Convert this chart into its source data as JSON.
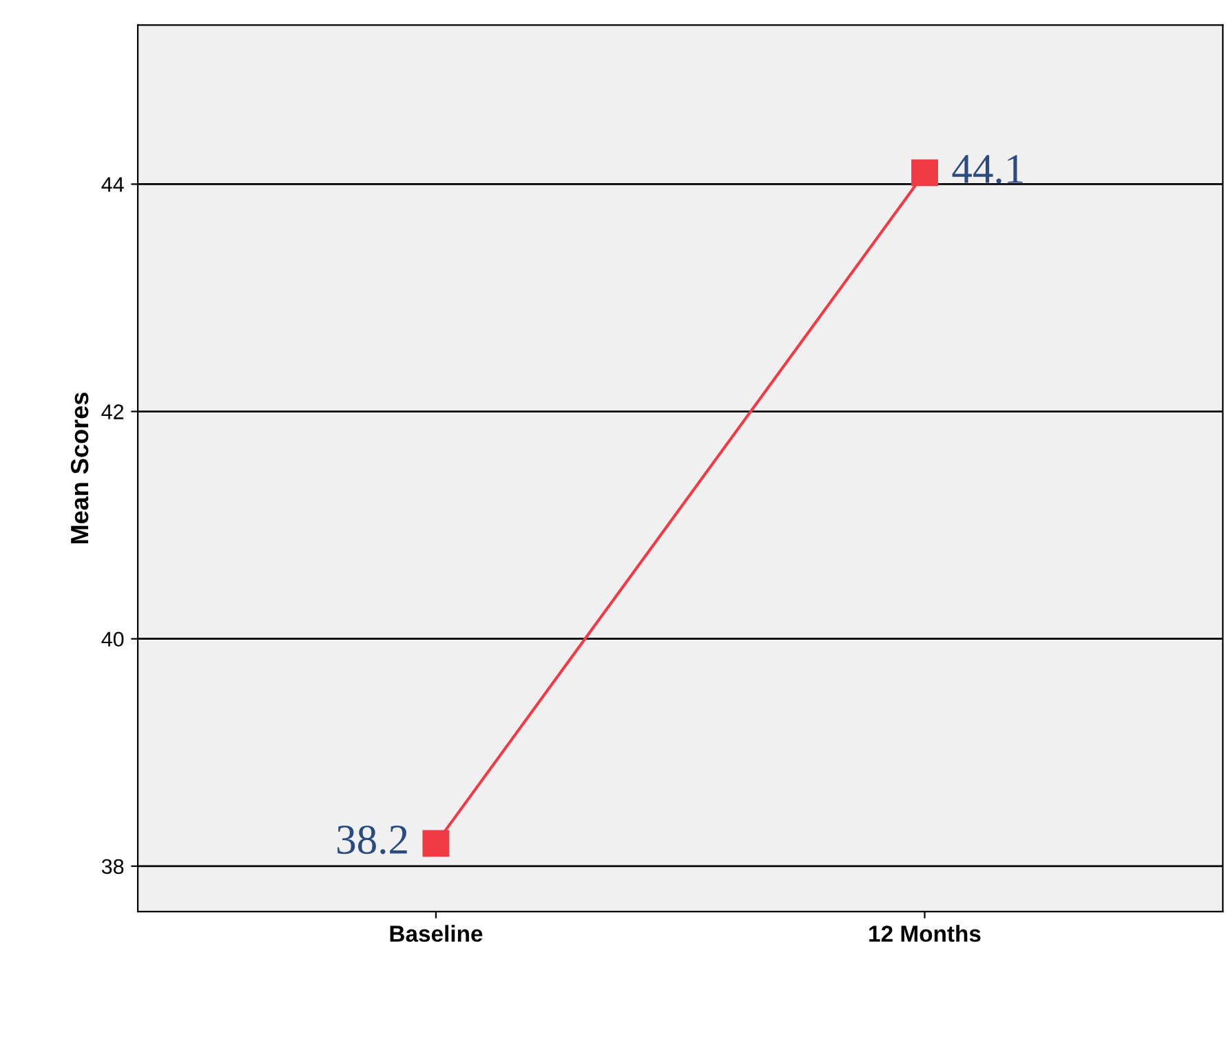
{
  "chart_data": {
    "type": "line",
    "ylabel": "Mean Scores",
    "categories": [
      "Baseline",
      "12 Months"
    ],
    "series": [
      {
        "color": "#f03a44",
        "values": [
          38.2,
          44.1
        ]
      }
    ],
    "ylim": [
      37.6,
      45.4
    ],
    "yticks": [
      38,
      40,
      42,
      44
    ],
    "grid": "y",
    "marker": "square",
    "line_style": "solid",
    "data_labels": true,
    "legend": false
  }
}
